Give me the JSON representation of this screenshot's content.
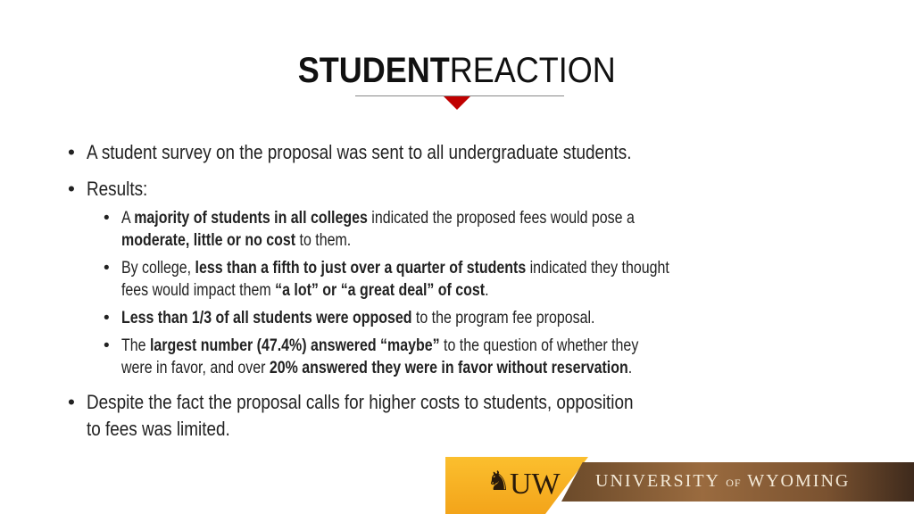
{
  "title": {
    "bold": "STUDENT",
    "regular": "REACTION"
  },
  "accent_color": "#c00000",
  "bullets": [
    {
      "level": 1,
      "lines": [
        [
          {
            "t": "A student survey on the proposal was sent to all undergraduate students.",
            "b": false
          }
        ]
      ]
    },
    {
      "level": 1,
      "lines": [
        [
          {
            "t": "Results:",
            "b": false
          }
        ]
      ]
    },
    {
      "level": 2,
      "lines": [
        [
          {
            "t": "A ",
            "b": false
          },
          {
            "t": "majority of students in all colleges",
            "b": true
          },
          {
            "t": " indicated the proposed fees would pose a",
            "b": false
          }
        ],
        [
          {
            "t": "moderate, little or no cost",
            "b": true
          },
          {
            "t": " to them.",
            "b": false
          }
        ]
      ]
    },
    {
      "level": 2,
      "lines": [
        [
          {
            "t": "By college, ",
            "b": false
          },
          {
            "t": "less than a fifth to just over a quarter of students",
            "b": true
          },
          {
            "t": " indicated they thought",
            "b": false
          }
        ],
        [
          {
            "t": "fees would impact them ",
            "b": false
          },
          {
            "t": "“a lot” or “a great deal” of cost",
            "b": true
          },
          {
            "t": ".",
            "b": false
          }
        ]
      ]
    },
    {
      "level": 2,
      "lines": [
        [
          {
            "t": "Less than 1/3 of all students were opposed",
            "b": true
          },
          {
            "t": " to the program fee proposal.",
            "b": false
          }
        ]
      ]
    },
    {
      "level": 2,
      "lines": [
        [
          {
            "t": "The ",
            "b": false
          },
          {
            "t": "largest number (47.4%) answered “maybe”",
            "b": true
          },
          {
            "t": " to the question of whether they",
            "b": false
          }
        ],
        [
          {
            "t": "were in favor, and over ",
            "b": false
          },
          {
            "t": "20% answered they were in favor without reservation",
            "b": true
          },
          {
            "t": ".",
            "b": false
          }
        ]
      ]
    },
    {
      "level": 1,
      "lines": [
        [
          {
            "t": "Despite the fact the proposal calls for higher costs to students, opposition",
            "b": false
          }
        ],
        [
          {
            "t": "to fees was limited.",
            "b": false
          }
        ]
      ]
    }
  ],
  "footer": {
    "logo_text": "UW",
    "university_a": "UNIVERSITY",
    "university_of": "OF",
    "university_b": "WYOMING"
  }
}
